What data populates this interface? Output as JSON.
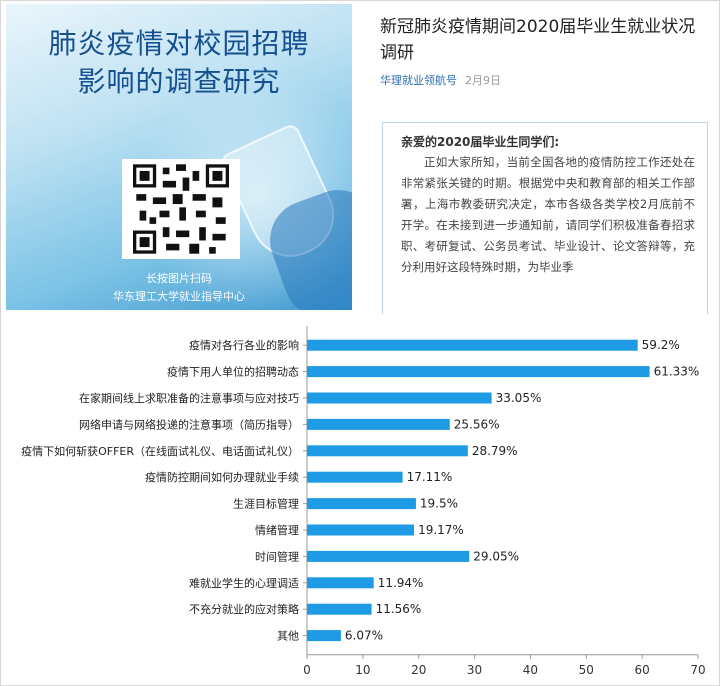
{
  "poster": {
    "title_line1": "肺炎疫情对校园招聘",
    "title_line2": "影响的调查研究",
    "caption_line1": "长按图片扫码",
    "caption_line2": "华东理工大学就业指导中心"
  },
  "article": {
    "title": "新冠肺炎疫情期间2020届毕业生就业状况调研",
    "author": "华理就业领航号",
    "date": "2月9日",
    "greeting": "亲爱的2020届毕业生同学们:",
    "body": "正如大家所知，当前全国各地的疫情防控工作还处在非常紧张关键的时期。根据党中央和教育部的相关工作部署，上海市教委研究决定，本市各级各类学校2月底前不开学。在未接到进一步通知前，请同学们积极准备春招求职、考研复试、公务员考试、毕业设计、论文答辩等，充分利用好这段特殊时期，为毕业季"
  },
  "chart_data": {
    "type": "bar",
    "orientation": "horizontal",
    "categories": [
      "疫情对各行各业的影响",
      "疫情下用人单位的招聘动态",
      "在家期间线上求职准备的注意事项与应对技巧",
      "网络申请与网络投递的注意事项（简历指导）",
      "疫情下如何斩获OFFER（在线面试礼仪、电话面试礼仪）",
      "疫情防控期间如何办理就业手续",
      "生涯目标管理",
      "情绪管理",
      "时间管理",
      "难就业学生的心理调适",
      "不充分就业的应对策略",
      "其他"
    ],
    "values": [
      59.2,
      61.33,
      33.05,
      25.56,
      28.79,
      17.11,
      19.5,
      19.17,
      29.05,
      11.94,
      11.56,
      6.07
    ],
    "value_labels": [
      "59.2%",
      "61.33%",
      "33.05%",
      "25.56%",
      "28.79%",
      "17.11%",
      "19.5%",
      "19.17%",
      "29.05%",
      "11.94%",
      "11.56%",
      "6.07%"
    ],
    "xlim": [
      0,
      70
    ],
    "xticks": [
      0,
      10,
      20,
      30,
      40,
      50,
      60,
      70
    ],
    "bar_color": "#1e9be4",
    "grid": false
  }
}
